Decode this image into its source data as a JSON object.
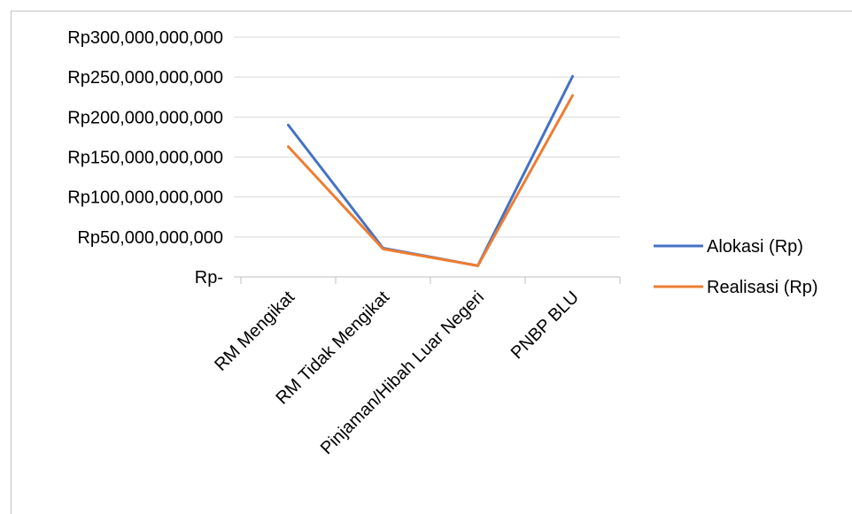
{
  "chart_data": {
    "type": "line",
    "categories": [
      "RM Mengikat",
      "RM Tidak Mengikat",
      "Pinjaman/Hibah Luar Negeri",
      "PNBP BLU"
    ],
    "series": [
      {
        "name": "Alokasi (Rp)",
        "color": "#4472C4",
        "values": [
          190000000000,
          36000000000,
          14000000000,
          251000000000
        ]
      },
      {
        "name": "Realisasi (Rp)",
        "color": "#ED7D31",
        "values": [
          163000000000,
          35000000000,
          14000000000,
          227000000000
        ]
      }
    ],
    "yticks": [
      {
        "value": 0,
        "label": "Rp-"
      },
      {
        "value": 50000000000,
        "label": "Rp50,000,000,000"
      },
      {
        "value": 100000000000,
        "label": "Rp100,000,000,000"
      },
      {
        "value": 150000000000,
        "label": "Rp150,000,000,000"
      },
      {
        "value": 200000000000,
        "label": "Rp200,000,000,000"
      },
      {
        "value": 250000000000,
        "label": "Rp250,000,000,000"
      },
      {
        "value": 300000000000,
        "label": "Rp300,000,000,000"
      }
    ],
    "ylim": [
      0,
      300000000000
    ],
    "grid": true,
    "legend_position": "right"
  }
}
